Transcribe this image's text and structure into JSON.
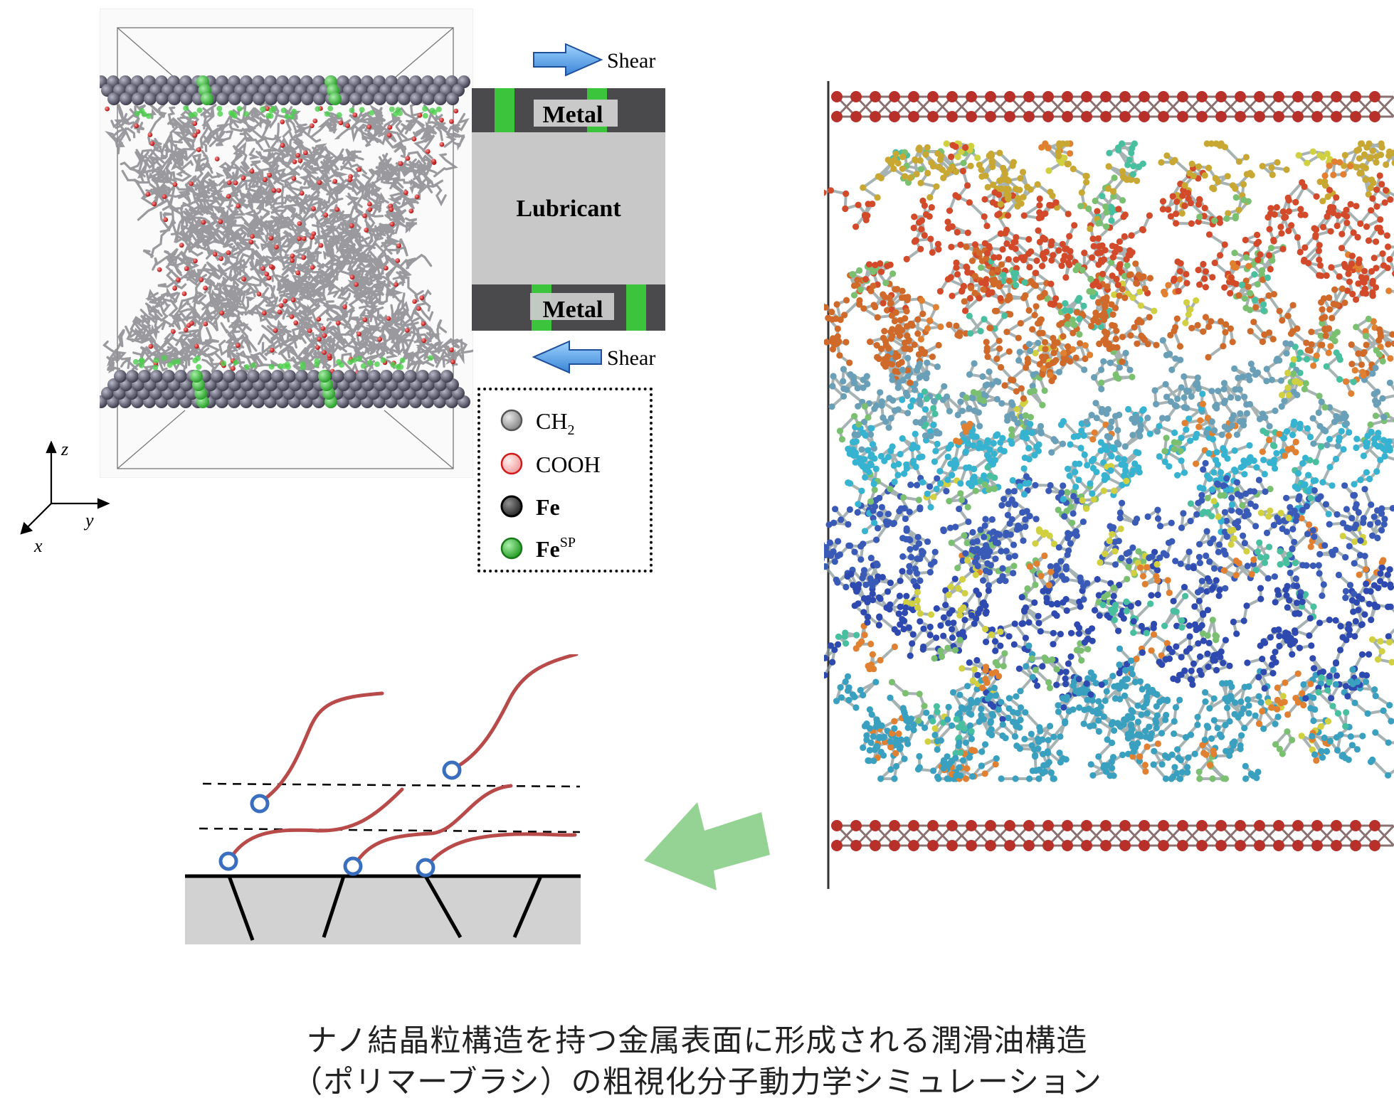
{
  "panel_left": {
    "axes": {
      "z": "z",
      "y": "y",
      "x": "x"
    }
  },
  "schematic": {
    "shear_top": "Shear",
    "shear_bottom": "Shear",
    "metal_top": "Metal",
    "lubricant": "Lubricant",
    "metal_bottom": "Metal",
    "colors": {
      "metal": "#4a4a4c",
      "lubricant": "#c8c8c8",
      "sp": "#3cc43c",
      "arrow": "#2f6fc8"
    }
  },
  "legend": {
    "items": [
      {
        "label": "CH",
        "sub": "2",
        "sup": "",
        "color": "#a9a9a9"
      },
      {
        "label": "COOH",
        "sub": "",
        "sup": "",
        "color": "#f0a0a0"
      },
      {
        "label": "Fe",
        "sub": "",
        "sup": "",
        "color": "#555555"
      },
      {
        "label": "Fe",
        "sub": "",
        "sup": "SP",
        "color": "#3cc43c"
      }
    ]
  },
  "caption": {
    "line1": "ナノ結晶粒構造を持つ金属表面に形成される潤滑油構造",
    "line2": "（ポリマーブラシ）の粗視化分子動力学シミュレーション"
  },
  "colors": {
    "chain": "#b84a4a",
    "anchor": "#3a6fc0",
    "green_arrow": "#8ccf8c",
    "surface": "#d2d2d2"
  }
}
